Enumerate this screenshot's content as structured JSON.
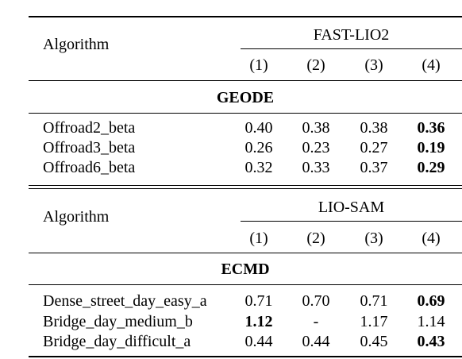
{
  "sections": [
    {
      "algorithm_label": "Algorithm",
      "method": "FAST-LIO2",
      "columns": [
        "(1)",
        "(2)",
        "(3)",
        "(4)"
      ],
      "dataset": "GEODE",
      "rows": [
        {
          "name": "Offroad2_beta",
          "values": [
            "0.40",
            "0.38",
            "0.38",
            "0.36"
          ],
          "bold": [
            false,
            false,
            false,
            true
          ]
        },
        {
          "name": "Offroad3_beta",
          "values": [
            "0.26",
            "0.23",
            "0.27",
            "0.19"
          ],
          "bold": [
            false,
            false,
            false,
            true
          ]
        },
        {
          "name": "Offroad6_beta",
          "values": [
            "0.32",
            "0.33",
            "0.37",
            "0.29"
          ],
          "bold": [
            false,
            false,
            false,
            true
          ]
        }
      ]
    },
    {
      "algorithm_label": "Algorithm",
      "method": "LIO-SAM",
      "columns": [
        "(1)",
        "(2)",
        "(3)",
        "(4)"
      ],
      "dataset": "ECMD",
      "rows": [
        {
          "name": "Dense_street_day_easy_a",
          "values": [
            "0.71",
            "0.70",
            "0.71",
            "0.69"
          ],
          "bold": [
            false,
            false,
            false,
            true
          ]
        },
        {
          "name": "Bridge_day_medium_b",
          "values": [
            "1.12",
            "-",
            "1.17",
            "1.14"
          ],
          "bold": [
            true,
            false,
            false,
            false
          ]
        },
        {
          "name": "Bridge_day_difficult_a",
          "values": [
            "0.44",
            "0.44",
            "0.45",
            "0.43"
          ],
          "bold": [
            false,
            false,
            false,
            true
          ]
        }
      ]
    }
  ]
}
